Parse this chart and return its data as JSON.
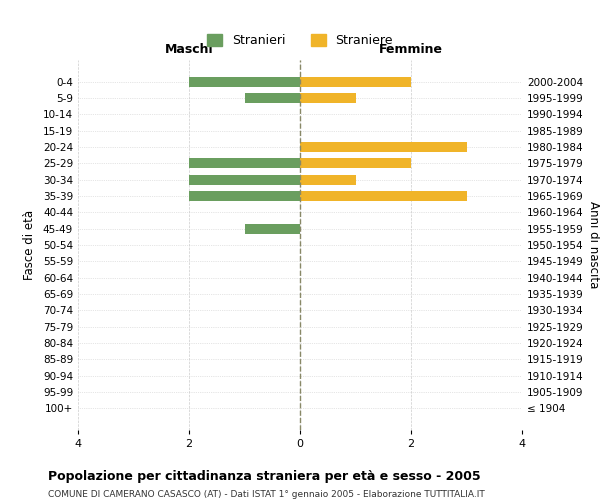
{
  "age_groups": [
    "100+",
    "95-99",
    "90-94",
    "85-89",
    "80-84",
    "75-79",
    "70-74",
    "65-69",
    "60-64",
    "55-59",
    "50-54",
    "45-49",
    "40-44",
    "35-39",
    "30-34",
    "25-29",
    "20-24",
    "15-19",
    "10-14",
    "5-9",
    "0-4"
  ],
  "birth_years": [
    "≤ 1904",
    "1905-1909",
    "1910-1914",
    "1915-1919",
    "1920-1924",
    "1925-1929",
    "1930-1934",
    "1935-1939",
    "1940-1944",
    "1945-1949",
    "1950-1954",
    "1955-1959",
    "1960-1964",
    "1965-1969",
    "1970-1974",
    "1975-1979",
    "1980-1984",
    "1985-1989",
    "1990-1994",
    "1995-1999",
    "2000-2004"
  ],
  "maschi": [
    0,
    0,
    0,
    0,
    0,
    0,
    0,
    0,
    0,
    0,
    0,
    1,
    0,
    2,
    2,
    2,
    0,
    0,
    0,
    1,
    2
  ],
  "femmine": [
    0,
    0,
    0,
    0,
    0,
    0,
    0,
    0,
    0,
    0,
    0,
    0,
    0,
    3,
    1,
    2,
    3,
    0,
    0,
    1,
    2
  ],
  "color_maschi": "#6a9e5f",
  "color_femmine": "#f0b429",
  "title_main": "Popolazione per cittadinanza straniera per età e sesso - 2005",
  "title_sub": "COMUNE DI CAMERANO CASASCO (AT) - Dati ISTAT 1° gennaio 2005 - Elaborazione TUTTITALIA.IT",
  "xlabel_left": "Maschi",
  "xlabel_right": "Femmine",
  "ylabel_left": "Fasce di età",
  "ylabel_right": "Anni di nascita",
  "legend_maschi": "Stranieri",
  "legend_femmine": "Straniere",
  "xlim": 4,
  "background_color": "#ffffff",
  "grid_color": "#cccccc"
}
